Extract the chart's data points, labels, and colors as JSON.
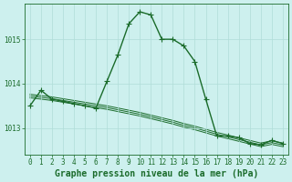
{
  "title": "Graphe pression niveau de la mer (hPa)",
  "background_color": "#cdf0ee",
  "grid_color": "#b0ddd8",
  "line_color": "#1a6b2a",
  "x_labels": [
    "0",
    "1",
    "2",
    "3",
    "4",
    "5",
    "6",
    "7",
    "8",
    "9",
    "10",
    "11",
    "12",
    "13",
    "14",
    "15",
    "16",
    "17",
    "18",
    "19",
    "20",
    "21",
    "22",
    "23"
  ],
  "ylim": [
    1012.4,
    1015.8
  ],
  "yticks": [
    1013,
    1014,
    1015
  ],
  "series_main": [
    1013.5,
    1013.85,
    1013.65,
    1013.6,
    1013.55,
    1013.5,
    1013.45,
    1014.05,
    1014.65,
    1015.35,
    1015.62,
    1015.55,
    1015.0,
    1015.0,
    1014.85,
    1014.5,
    1013.65,
    1012.82,
    1012.82,
    1012.78,
    1012.65,
    1012.62,
    1012.72,
    1012.65
  ],
  "series_bg": [
    [
      1013.68,
      1013.65,
      1013.62,
      1013.58,
      1013.54,
      1013.5,
      1013.46,
      1013.42,
      1013.37,
      1013.32,
      1013.27,
      1013.21,
      1013.15,
      1013.09,
      1013.02,
      1012.96,
      1012.89,
      1012.82,
      1012.76,
      1012.7,
      1012.64,
      1012.58,
      1012.63,
      1012.58
    ],
    [
      1013.72,
      1013.69,
      1013.66,
      1013.62,
      1013.58,
      1013.54,
      1013.5,
      1013.46,
      1013.41,
      1013.36,
      1013.31,
      1013.25,
      1013.19,
      1013.13,
      1013.06,
      1013.0,
      1012.93,
      1012.86,
      1012.8,
      1012.74,
      1012.68,
      1012.62,
      1012.67,
      1012.62
    ],
    [
      1013.76,
      1013.73,
      1013.7,
      1013.66,
      1013.62,
      1013.58,
      1013.54,
      1013.5,
      1013.45,
      1013.4,
      1013.35,
      1013.29,
      1013.23,
      1013.17,
      1013.1,
      1013.04,
      1012.97,
      1012.9,
      1012.84,
      1012.78,
      1012.72,
      1012.66,
      1012.71,
      1012.66
    ]
  ],
  "marker": "+",
  "marker_size": 4,
  "linewidth_main": 1.0,
  "linewidth_bg": 0.7,
  "title_fontsize": 7.0,
  "tick_fontsize": 5.5
}
